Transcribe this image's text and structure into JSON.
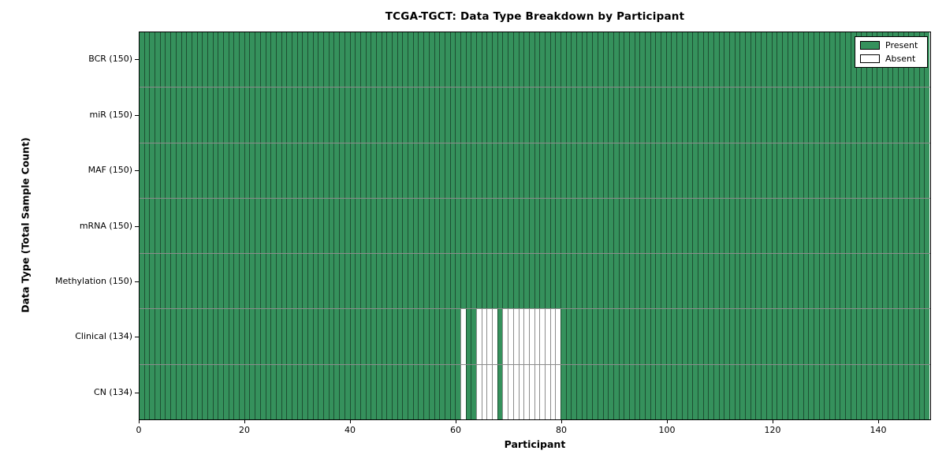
{
  "title": "TCGA-TGCT: Data Type Breakdown by Participant",
  "xlabel": "Participant",
  "ylabel": "Data Type (Total Sample Count)",
  "colors": {
    "present": "#35915C",
    "absent": "#FFFFFF",
    "cell_edge": "rgba(0,0,0,0.45)",
    "axis": "#000000"
  },
  "chart_data": {
    "type": "heatmap",
    "title": "TCGA-TGCT: Data Type Breakdown by Participant",
    "xlabel": "Participant",
    "ylabel": "Data Type (Total Sample Count)",
    "x_axis": {
      "min": 0,
      "max": 150,
      "ticks": [
        0,
        20,
        40,
        60,
        80,
        100,
        120,
        140
      ]
    },
    "n_participants": 150,
    "legend_position": "upper right",
    "grid": "cell-edges",
    "rows": [
      {
        "label": "BCR",
        "total": 150,
        "tick_label": "BCR (150)",
        "absent_participants": []
      },
      {
        "label": "miR",
        "total": 150,
        "tick_label": "miR (150)",
        "absent_participants": []
      },
      {
        "label": "MAF",
        "total": 150,
        "tick_label": "MAF (150)",
        "absent_participants": []
      },
      {
        "label": "mRNA",
        "total": 150,
        "tick_label": "mRNA (150)",
        "absent_participants": []
      },
      {
        "label": "Methylation",
        "total": 150,
        "tick_label": "Methylation (150)",
        "absent_participants": []
      },
      {
        "label": "Clinical",
        "total": 134,
        "tick_label": "Clinical (134)",
        "absent_participants": [
          61,
          64,
          65,
          66,
          67,
          69,
          70,
          71,
          72,
          73,
          74,
          75,
          76,
          77,
          78,
          79
        ]
      },
      {
        "label": "CN",
        "total": 134,
        "tick_label": "CN (134)",
        "absent_participants": [
          61,
          64,
          65,
          66,
          67,
          69,
          70,
          71,
          72,
          73,
          74,
          75,
          76,
          77,
          78,
          79
        ]
      }
    ],
    "legend": [
      {
        "label": "Present",
        "state": "present"
      },
      {
        "label": "Absent",
        "state": "absent"
      }
    ]
  }
}
